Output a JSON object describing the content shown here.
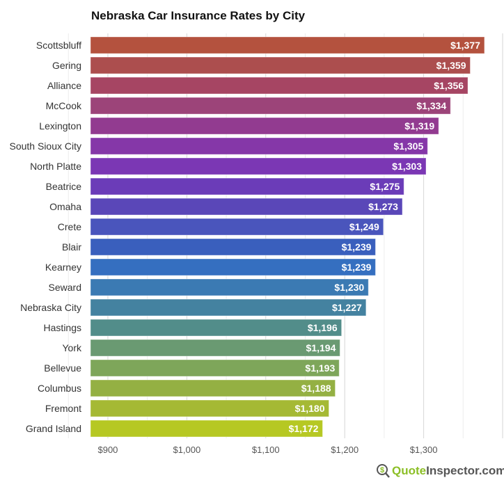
{
  "chart_data": {
    "type": "bar",
    "orientation": "horizontal",
    "title": "Nebraska Car Insurance Rates by City",
    "xlabel": "",
    "ylabel": "",
    "xlim": [
      878,
      1400
    ],
    "xticks": [
      900,
      1000,
      1100,
      1200,
      1300
    ],
    "xtick_labels": [
      "$900",
      "$1,000",
      "$1,100",
      "$1,200",
      "$1,300"
    ],
    "grid": true,
    "categories": [
      "Scottsbluff",
      "Gering",
      "Alliance",
      "McCook",
      "Lexington",
      "South Sioux City",
      "North Platte",
      "Beatrice",
      "Omaha",
      "Crete",
      "Blair",
      "Kearney",
      "Seward",
      "Nebraska City",
      "Hastings",
      "York",
      "Bellevue",
      "Columbus",
      "Fremont",
      "Grand Island"
    ],
    "values": [
      1377,
      1359,
      1356,
      1334,
      1319,
      1305,
      1303,
      1275,
      1273,
      1249,
      1239,
      1239,
      1230,
      1227,
      1196,
      1194,
      1193,
      1188,
      1180,
      1172
    ],
    "value_labels": [
      "$1,377",
      "$1,359",
      "$1,356",
      "$1,334",
      "$1,319",
      "$1,305",
      "$1,303",
      "$1,275",
      "$1,273",
      "$1,249",
      "$1,239",
      "$1,239",
      "$1,230",
      "$1,227",
      "$1,196",
      "$1,194",
      "$1,193",
      "$1,188",
      "$1,180",
      "$1,172"
    ],
    "colors": [
      "#b4523e",
      "#ac4e4e",
      "#a64563",
      "#9c4479",
      "#923b90",
      "#8537a8",
      "#7b37b4",
      "#6b3cb8",
      "#5a47b8",
      "#4a55bc",
      "#3a5fbd",
      "#356fc0",
      "#3b7ab3",
      "#4482a0",
      "#528d8a",
      "#6a9a72",
      "#7ea65a",
      "#94b043",
      "#a5b934",
      "#b6c823"
    ]
  },
  "logo": {
    "part1": "Quote",
    "part2": "Inspector.com",
    "icon": "dollar-magnifier-icon"
  }
}
